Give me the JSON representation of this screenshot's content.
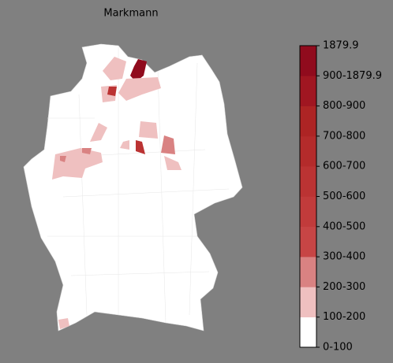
{
  "title": "Markmann",
  "legend": {
    "labels": [
      "0-100",
      "100-200",
      "200-300",
      "300-400",
      "400-500",
      "500-600",
      "600-700",
      "700-800",
      "800-900",
      "900-1879.9",
      "1879.9"
    ],
    "colors": [
      "#ffffff",
      "#efc0c0",
      "#d98282",
      "#c74545",
      "#c13b3b",
      "#bb3333",
      "#b42b2b",
      "#ad2424",
      "#a01621",
      "#900b1d"
    ]
  }
}
